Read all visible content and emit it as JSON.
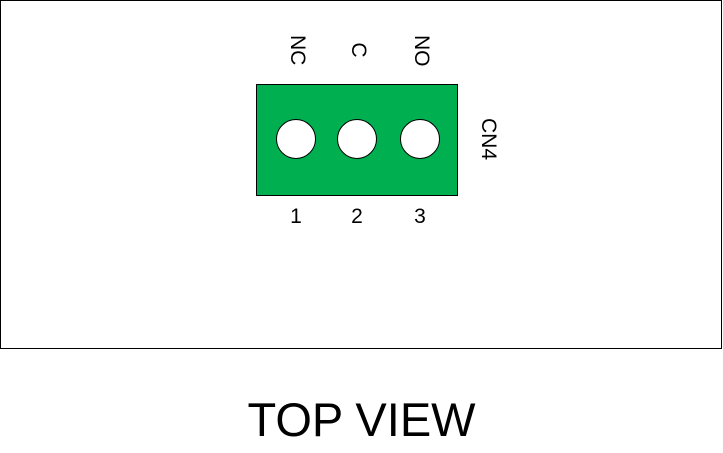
{
  "diagram": {
    "view_title": "TOP VIEW",
    "connector": {
      "ref": "CN4",
      "color": "#00b050",
      "pins": [
        {
          "number": "1",
          "label": "NC"
        },
        {
          "number": "2",
          "label": "C"
        },
        {
          "number": "3",
          "label": "NO"
        }
      ]
    }
  }
}
